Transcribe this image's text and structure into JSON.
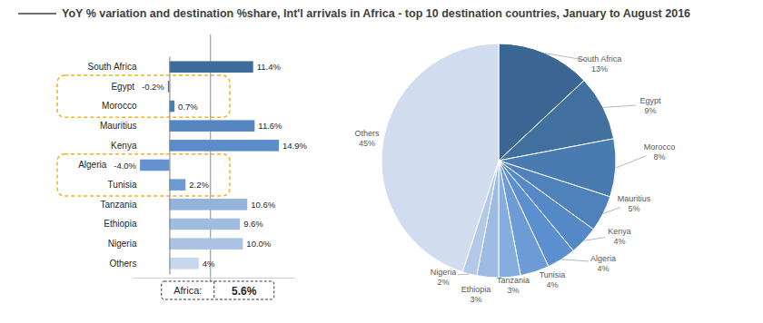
{
  "chart_data": [
    {
      "type": "bar",
      "title": "YoY % variation and destination %share, Int'l arrivals in Africa - top 10 destination countries, January to August 2016",
      "orientation": "horizontal",
      "data_labels": true,
      "tick_labels": "y",
      "categories": [
        "South Africa",
        "Egypt",
        "Morocco",
        "Mauritius",
        "Kenya",
        "Algeria",
        "Tunisia",
        "Tanzania",
        "Ethiopia",
        "Nigeria",
        "Others"
      ],
      "values": [
        11.4,
        -0.2,
        0.7,
        11.6,
        14.9,
        -4.0,
        2.2,
        10.6,
        9.6,
        10.0,
        4
      ],
      "value_labels": [
        "11.4%",
        "-0.2%",
        "0.7%",
        "11.6%",
        "14.9%",
        "-4.0%",
        "2.2%",
        "10.6%",
        "9.6%",
        "10.0%",
        "4%"
      ],
      "colors": [
        "#3e6b9a",
        "#4576a9",
        "#4a7db3",
        "#5686c2",
        "#5b8ccc",
        "#6493d0",
        "#6f9bd4",
        "#93b3dc",
        "#9fbce1",
        "#abc4e5",
        "#c8d7ec"
      ],
      "xlim": [
        -5,
        17
      ],
      "reference": {
        "label": "Africa:",
        "value": 5.6,
        "value_label": "5.6%"
      }
    },
    {
      "type": "pie",
      "data_labels": true,
      "categories": [
        "South Africa",
        "Egypt",
        "Morocco",
        "Mauritius",
        "Kenya",
        "Algeria",
        "Tunisia",
        "Tanzania",
        "Ethiopia",
        "Nigeria",
        "Others"
      ],
      "values": [
        13,
        9,
        8,
        5,
        4,
        4,
        4,
        3,
        3,
        2,
        45
      ],
      "value_labels": [
        "13%",
        "9%",
        "8%",
        "5%",
        "4%",
        "4%",
        "4%",
        "3%",
        "3%",
        "2%",
        "45%"
      ],
      "colors": [
        "#3b6592",
        "#41709e",
        "#4a7bb0",
        "#4f81bb",
        "#5588c6",
        "#5b8fd0",
        "#6c9bd6",
        "#86addf",
        "#9dbbe3",
        "#b2c9e8",
        "#d1dcee"
      ]
    }
  ]
}
